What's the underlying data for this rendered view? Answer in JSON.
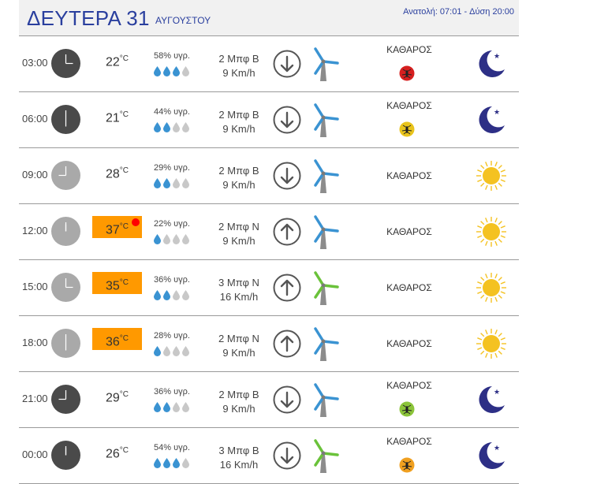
{
  "header": {
    "day": "ΔΕΥΤΕΡΑ 31",
    "month": "ΑΥΓΟΥΣΤΟΥ",
    "sunrise": "Ανατολή: 07:01",
    "sunset": "Δύση 20:00"
  },
  "rows": [
    {
      "time": "03:00",
      "temp": "22",
      "hot": false,
      "hot_dot": false,
      "humidity": "58% υγρ.",
      "drops_filled": 3,
      "wind_force": "2 Μπφ Β",
      "wind_speed": "9 Km/h",
      "arrow": "down",
      "mill_color": "#3a93d2",
      "condition": "ΚΑΘΑΡΟΣ",
      "mosquito": "#d61f1f",
      "icon": "moon-icon",
      "clock": "dark"
    },
    {
      "time": "06:00",
      "temp": "21",
      "hot": false,
      "hot_dot": false,
      "humidity": "44% υγρ.",
      "drops_filled": 2,
      "wind_force": "2 Μπφ Β",
      "wind_speed": "9 Km/h",
      "arrow": "down",
      "mill_color": "#3a93d2",
      "condition": "ΚΑΘΑΡΟΣ",
      "mosquito": "#e8c31c",
      "icon": "moon-icon",
      "clock": "dark"
    },
    {
      "time": "09:00",
      "temp": "28",
      "hot": false,
      "hot_dot": false,
      "humidity": "29% υγρ.",
      "drops_filled": 2,
      "wind_force": "2 Μπφ Β",
      "wind_speed": "9 Km/h",
      "arrow": "down",
      "mill_color": "#3a93d2",
      "condition": "ΚΑΘΑΡΟΣ",
      "mosquito": "",
      "icon": "sun-icon",
      "clock": "light"
    },
    {
      "time": "12:00",
      "temp": "37",
      "hot": true,
      "hot_dot": true,
      "humidity": "22% υγρ.",
      "drops_filled": 1,
      "wind_force": "2 Μπφ Ν",
      "wind_speed": "9 Km/h",
      "arrow": "up",
      "mill_color": "#3a93d2",
      "condition": "ΚΑΘΑΡΟΣ",
      "mosquito": "",
      "icon": "sun-icon",
      "clock": "light"
    },
    {
      "time": "15:00",
      "temp": "35",
      "hot": true,
      "hot_dot": false,
      "humidity": "36% υγρ.",
      "drops_filled": 2,
      "wind_force": "3 Μπφ Ν",
      "wind_speed": "16 Km/h",
      "arrow": "up",
      "mill_color": "#6ac23a",
      "condition": "ΚΑΘΑΡΟΣ",
      "mosquito": "",
      "icon": "sun-icon",
      "clock": "light"
    },
    {
      "time": "18:00",
      "temp": "36",
      "hot": true,
      "hot_dot": false,
      "humidity": "28% υγρ.",
      "drops_filled": 1,
      "wind_force": "2 Μπφ Ν",
      "wind_speed": "9 Km/h",
      "arrow": "up",
      "mill_color": "#3a93d2",
      "condition": "ΚΑΘΑΡΟΣ",
      "mosquito": "",
      "icon": "sun-icon",
      "clock": "light"
    },
    {
      "time": "21:00",
      "temp": "29",
      "hot": false,
      "hot_dot": false,
      "humidity": "36% υγρ.",
      "drops_filled": 2,
      "wind_force": "2 Μπφ Β",
      "wind_speed": "9 Km/h",
      "arrow": "down",
      "mill_color": "#3a93d2",
      "condition": "ΚΑΘΑΡΟΣ",
      "mosquito": "#8bc43a",
      "icon": "moon-icon",
      "clock": "dark"
    },
    {
      "time": "00:00",
      "temp": "26",
      "hot": false,
      "hot_dot": false,
      "humidity": "54% υγρ.",
      "drops_filled": 3,
      "wind_force": "3 Μπφ Β",
      "wind_speed": "16 Km/h",
      "arrow": "down",
      "mill_color": "#6ac23a",
      "condition": "ΚΑΘΑΡΟΣ",
      "mosquito": "#f0a020",
      "icon": "moon-icon",
      "clock": "dark"
    }
  ],
  "unit": "°C"
}
